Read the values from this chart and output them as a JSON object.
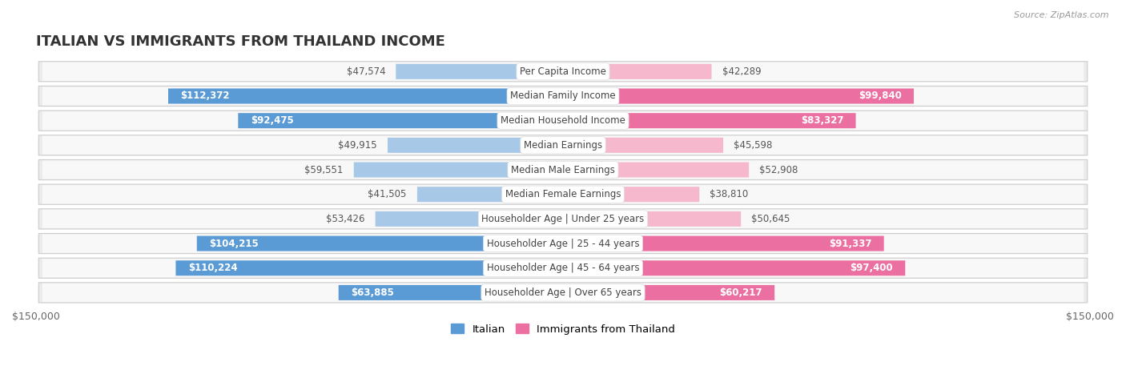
{
  "title": "ITALIAN VS IMMIGRANTS FROM THAILAND INCOME",
  "source": "Source: ZipAtlas.com",
  "categories": [
    "Per Capita Income",
    "Median Family Income",
    "Median Household Income",
    "Median Earnings",
    "Median Male Earnings",
    "Median Female Earnings",
    "Householder Age | Under 25 years",
    "Householder Age | 25 - 44 years",
    "Householder Age | 45 - 64 years",
    "Householder Age | Over 65 years"
  ],
  "italian_values": [
    47574,
    112372,
    92475,
    49915,
    59551,
    41505,
    53426,
    104215,
    110224,
    63885
  ],
  "thailand_values": [
    42289,
    99840,
    83327,
    45598,
    52908,
    38810,
    50645,
    91337,
    97400,
    60217
  ],
  "italian_labels": [
    "$47,574",
    "$112,372",
    "$92,475",
    "$49,915",
    "$59,551",
    "$41,505",
    "$53,426",
    "$104,215",
    "$110,224",
    "$63,885"
  ],
  "thailand_labels": [
    "$42,289",
    "$99,840",
    "$83,327",
    "$45,598",
    "$52,908",
    "$38,810",
    "$50,645",
    "$91,337",
    "$97,400",
    "$60,217"
  ],
  "italian_color_light": "#a8c8e8",
  "italian_color_dark": "#5b9bd5",
  "thailand_color_light": "#f5b8cc",
  "thailand_color_dark": "#eb6fa0",
  "row_bg": "#ebebeb",
  "row_bg_inner": "#f5f5f5",
  "xlim": 150000,
  "label_color_inside": "#ffffff",
  "label_color_outside": "#555555",
  "bar_height": 0.62,
  "inside_threshold": 60000,
  "legend_italian": "Italian",
  "legend_thailand": "Immigrants from Thailand"
}
